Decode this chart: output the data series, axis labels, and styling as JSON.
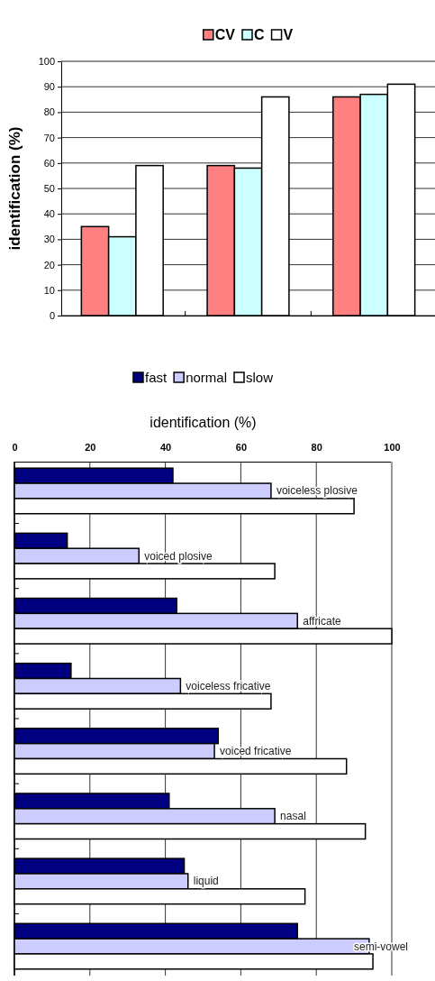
{
  "chart_data": [
    {
      "type": "bar",
      "ylabel": "identification (%)",
      "categories": [
        null,
        null,
        null
      ],
      "series": [
        {
          "name": "CV",
          "color": "#ff8080",
          "values": [
            35,
            59,
            86
          ]
        },
        {
          "name": "C",
          "color": "#ccffff",
          "values": [
            31,
            58,
            87
          ]
        },
        {
          "name": "V",
          "color": "#ffffff",
          "values": [
            59,
            86,
            91
          ]
        }
      ],
      "ylim": [
        0,
        100
      ],
      "yticks": [
        0,
        10,
        20,
        30,
        40,
        50,
        60,
        70,
        80,
        90,
        100
      ],
      "grid": "y",
      "legend": "top",
      "tick_labels": "y"
    },
    {
      "type": "bar",
      "orientation": "horizontal",
      "xlabel": "identification (%)",
      "categories": [
        "voiceless plosive",
        "voiced plosive",
        "affricate",
        "voiceless fricative",
        "voiced fricative",
        "nasal",
        "liquid",
        "semi-vowel"
      ],
      "series": [
        {
          "name": "fast",
          "color": "#000080",
          "values": [
            42,
            14,
            43,
            15,
            54,
            41,
            45,
            75
          ]
        },
        {
          "name": "normal",
          "color": "#ccccff",
          "values": [
            68,
            33,
            75,
            44,
            53,
            69,
            46,
            94
          ]
        },
        {
          "name": "slow",
          "color": "#ffffff",
          "values": [
            90,
            69,
            100,
            68,
            88,
            93,
            77,
            95
          ]
        }
      ],
      "xlim": [
        0,
        100
      ],
      "xticks": [
        0,
        20,
        40,
        60,
        80,
        100
      ],
      "grid": "x",
      "legend": "top",
      "tick_labels": "x"
    }
  ]
}
